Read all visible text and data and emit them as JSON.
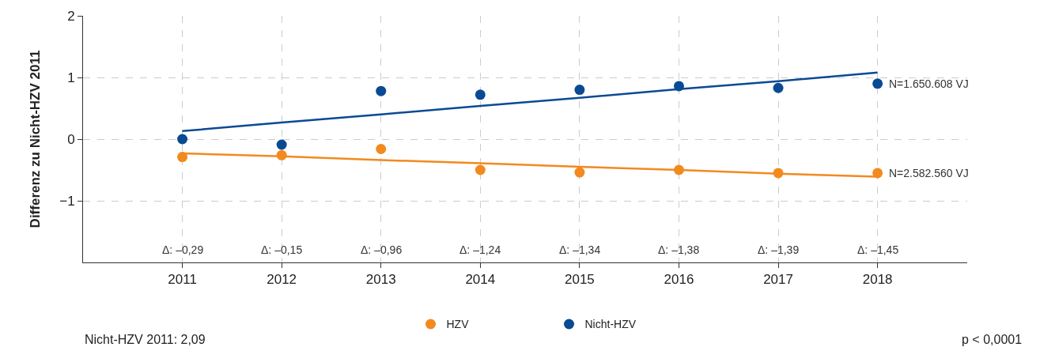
{
  "chart_data": {
    "type": "scatter",
    "ylabel": "Differenz zu Nicht-HZV 2011",
    "x": [
      2011,
      2012,
      2013,
      2014,
      2015,
      2016,
      2017,
      2018
    ],
    "series": [
      {
        "name": "HZV",
        "color": "#f28a1e",
        "values": [
          -0.29,
          -0.26,
          -0.16,
          -0.5,
          -0.54,
          -0.5,
          -0.55,
          -0.55
        ]
      },
      {
        "name": "Nicht-HZV",
        "color": "#0a4a94",
        "values": [
          0,
          -0.09,
          0.78,
          0.72,
          0.8,
          0.86,
          0.83,
          0.9
        ]
      },
      {
        "type": "line",
        "marker": "none",
        "color": "#f28a1e",
        "values": [
          -0.23,
          -0.28,
          -0.34,
          -0.39,
          -0.45,
          -0.5,
          -0.56,
          -0.61
        ]
      },
      {
        "type": "line",
        "marker": "none",
        "color": "#0a4a94",
        "values": [
          0.13,
          0.27,
          0.4,
          0.54,
          0.67,
          0.81,
          0.94,
          1.08
        ]
      }
    ],
    "xlim": [
      2010,
      2018.9
    ],
    "xticks": [
      2011,
      2012,
      2013,
      2014,
      2015,
      2016,
      2017,
      2018
    ],
    "ylim": [
      -2,
      2
    ],
    "yticks": [
      2,
      1,
      0,
      {
        "value": -1,
        "label": "−1"
      }
    ],
    "grid": true,
    "legend": "bottom",
    "marker": "circle",
    "annotations": [
      "Δ: –0,29",
      "Δ: –0,15",
      "Δ: –0,96",
      "Δ: –1,24",
      "Δ: –1,34",
      "Δ: –1,38",
      "Δ: –1,39",
      "Δ: –1,45",
      {
        "text": "N=1.650.608 VJ",
        "x": 2018,
        "y": 0.9
      },
      {
        "text": "N=2.582.560 VJ",
        "x": 2018,
        "y": -0.55
      },
      "Nicht-HZV 2011: 2,09",
      "p < 0,0001"
    ]
  }
}
